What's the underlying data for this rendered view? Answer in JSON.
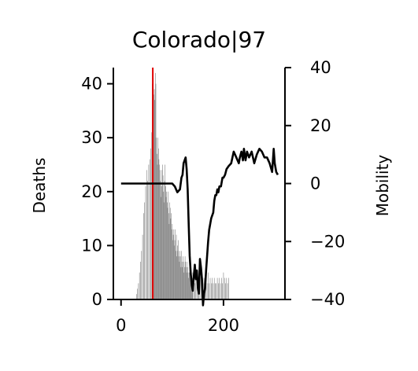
{
  "chart_data": {
    "type": "bar+line",
    "title": "Colorado|97",
    "xlabel": "",
    "ylabel_left": "Deaths",
    "ylabel_right": "Mobility",
    "x_ticks": [
      0,
      200
    ],
    "y_left_ticks": [
      0,
      10,
      20,
      30,
      40
    ],
    "y_right_ticks": [
      40,
      20,
      0,
      -20,
      -40
    ],
    "y_right_tick_labels": [
      "40",
      "20",
      "0",
      "−20",
      "−40"
    ],
    "xlim": [
      -15,
      320
    ],
    "ylim_left": [
      0,
      43
    ],
    "ylim_right": [
      -40,
      40
    ],
    "marker_x": 62,
    "marker_color": "#e00000",
    "bar_color": "#808080",
    "line_color": "#000000",
    "deaths": {
      "x": [
        20,
        24,
        28,
        30,
        32,
        34,
        36,
        38,
        40,
        42,
        44,
        46,
        48,
        50,
        52,
        54,
        56,
        58,
        60,
        61,
        62,
        63,
        64,
        65,
        66,
        67,
        68,
        69,
        70,
        71,
        72,
        73,
        74,
        75,
        76,
        77,
        78,
        79,
        80,
        81,
        82,
        83,
        84,
        85,
        86,
        87,
        88,
        89,
        90,
        91,
        92,
        93,
        94,
        95,
        96,
        97,
        98,
        99,
        100,
        101,
        102,
        103,
        104,
        105,
        106,
        107,
        108,
        109,
        110,
        111,
        112,
        113,
        114,
        115,
        116,
        117,
        118,
        119,
        120,
        121,
        122,
        123,
        124,
        125,
        126,
        127,
        128,
        129,
        130,
        131,
        132,
        133,
        134,
        135,
        136,
        137,
        138,
        139,
        140,
        142,
        144,
        146,
        148,
        150,
        152,
        154,
        156,
        158,
        160,
        162,
        164,
        166,
        168,
        170,
        172,
        174,
        176,
        178,
        180,
        182,
        184,
        186,
        188,
        190,
        192,
        194,
        196,
        198,
        200,
        202,
        204,
        206,
        208,
        210
      ],
      "values": [
        0,
        0,
        0,
        1,
        2,
        3,
        5,
        7,
        9,
        12,
        16,
        18,
        21,
        24,
        22,
        25,
        26,
        28,
        31,
        40,
        36,
        41,
        38,
        39,
        37,
        42,
        40,
        30,
        27,
        25,
        30,
        28,
        26,
        25,
        24,
        22,
        19,
        21,
        24,
        25,
        23,
        20,
        18,
        22,
        25,
        21,
        19,
        20,
        18,
        17,
        20,
        16,
        14,
        18,
        17,
        15,
        16,
        13,
        14,
        11,
        12,
        13,
        10,
        11,
        13,
        9,
        12,
        8,
        10,
        9,
        11,
        8,
        7,
        9,
        8,
        6,
        9,
        7,
        6,
        8,
        7,
        5,
        6,
        8,
        7,
        6,
        5,
        7,
        6,
        5,
        4,
        5,
        6,
        4,
        5,
        4,
        3,
        4,
        5,
        4,
        3,
        5,
        4,
        3,
        4,
        3,
        5,
        4,
        3,
        4,
        3,
        4,
        3,
        5,
        3,
        4,
        3,
        4,
        3,
        4,
        3,
        3,
        4,
        3,
        4,
        3,
        4,
        3,
        5,
        4,
        3,
        4,
        3,
        4
      ]
    },
    "mobility": {
      "x": [
        0,
        20,
        40,
        60,
        90,
        95,
        100,
        105,
        110,
        115,
        118,
        120,
        122,
        124,
        126,
        128,
        130,
        132,
        134,
        136,
        138,
        140,
        142,
        144,
        146,
        148,
        150,
        152,
        154,
        156,
        158,
        160,
        162,
        164,
        166,
        168,
        170,
        172,
        174,
        176,
        178,
        180,
        182,
        184,
        186,
        188,
        190,
        192,
        195,
        198,
        200,
        203,
        206,
        210,
        215,
        220,
        225,
        230,
        232,
        235,
        238,
        240,
        243,
        246,
        250,
        255,
        260,
        265,
        270,
        275,
        280,
        285,
        290,
        295,
        298,
        300,
        303,
        306
      ],
      "values": [
        0,
        0,
        0,
        0,
        0,
        0,
        0,
        -1,
        -3,
        -2,
        2,
        3,
        7,
        8,
        9,
        5,
        -2,
        -14,
        -25,
        -31,
        -35,
        -37,
        -32,
        -28,
        -33,
        -30,
        -36,
        -38,
        -26,
        -29,
        -33,
        -42,
        -38,
        -36,
        -30,
        -25,
        -20,
        -16,
        -14,
        -12,
        -11,
        -10,
        -6,
        -4,
        -4,
        -2,
        -3,
        -1,
        -1,
        2,
        2,
        3,
        5,
        6,
        7,
        11,
        9,
        7,
        9,
        11,
        8,
        12,
        8,
        11,
        9,
        11,
        7,
        10,
        12,
        11,
        9,
        9,
        7,
        4,
        12,
        7,
        4,
        3
      ]
    }
  }
}
